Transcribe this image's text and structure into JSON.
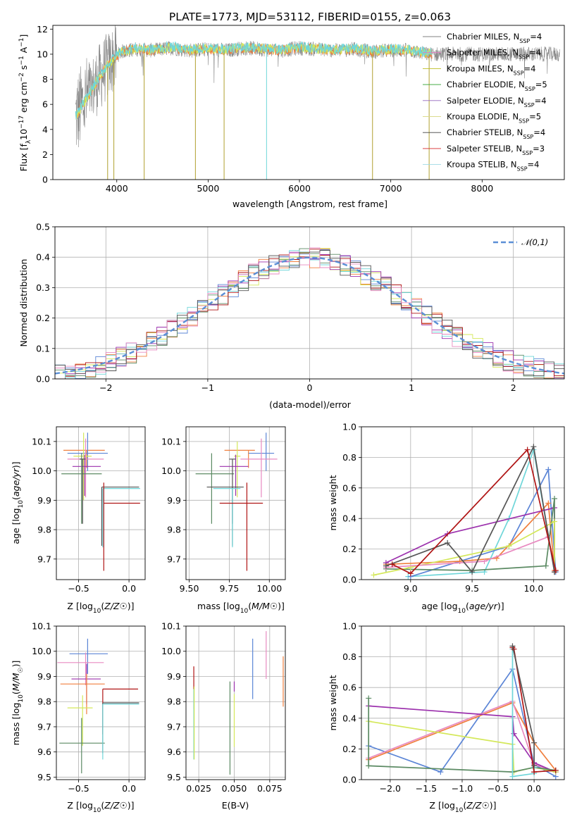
{
  "colors": {
    "Chabrier MILES": "#808080",
    "Salpeter MILES": "#e377c2",
    "Kroupa MILES": "#bcbd22",
    "Chabrier ELODIE": "#2ca02c",
    "Salpeter ELODIE": "#9467bd",
    "Kroupa ELODIE": "#dbdb8d",
    "Chabrier STELIB": "#404040",
    "Salpeter STELIB": "#d62728",
    "Kroupa STELIB": "#9edae5",
    "teal": "#6fd6d9",
    "blue": "#5b85d6",
    "orange": "#f07f3e",
    "purple": "#9c31ad",
    "green": "#5b8a63",
    "yellow": "#d4e85a",
    "pink": "#e88ac0",
    "red": "#b01515",
    "dark": "#555555"
  },
  "chart_data": [
    {
      "id": "spectrum",
      "type": "line",
      "title": "PLATE=1773, MJD=53112, FIBERID=0155, z=0.063",
      "xlabel": "wavelength [Angstrom, rest frame]",
      "ylabel": "Flux [f_λ10^-17 erg cm^-2 s^-1 A^-1]",
      "xlim": [
        3300,
        8900
      ],
      "ylim": [
        0,
        12.3
      ],
      "xticks": [
        4000,
        5000,
        6000,
        7000,
        8000
      ],
      "yticks": [
        0,
        2,
        4,
        6,
        8,
        10,
        12
      ],
      "legend_position": "right",
      "legend": [
        {
          "label": "Chabrier MILES",
          "nssp": "4"
        },
        {
          "label": "Salpeter MILES",
          "nssp": "4"
        },
        {
          "label": "Kroupa MILES",
          "nssp": "4"
        },
        {
          "label": "Chabrier ELODIE",
          "nssp": "5"
        },
        {
          "label": "Salpeter ELODIE",
          "nssp": "4"
        },
        {
          "label": "Kroupa ELODIE",
          "nssp": "5"
        },
        {
          "label": "Chabrier STELIB",
          "nssp": "4"
        },
        {
          "label": "Salpeter STELIB",
          "nssp": "3"
        },
        {
          "label": "Kroupa STELIB",
          "nssp": "4"
        }
      ],
      "model_continuum": [
        [
          3550,
          5.0
        ],
        [
          3650,
          6.2
        ],
        [
          3750,
          7.4
        ],
        [
          3850,
          8.6
        ],
        [
          3950,
          9.5
        ],
        [
          4050,
          10.2
        ],
        [
          4200,
          10.4
        ],
        [
          4400,
          10.3
        ],
        [
          4600,
          10.5
        ],
        [
          4800,
          10.3
        ],
        [
          5000,
          10.4
        ],
        [
          5200,
          10.3
        ],
        [
          5400,
          10.5
        ],
        [
          5600,
          10.4
        ],
        [
          5800,
          10.3
        ],
        [
          6000,
          10.5
        ],
        [
          6200,
          10.4
        ],
        [
          6400,
          10.3
        ],
        [
          6600,
          10.4
        ],
        [
          6800,
          10.2
        ],
        [
          7000,
          10.3
        ],
        [
          7200,
          10.3
        ],
        [
          7400,
          10.0
        ]
      ],
      "absorption_lines": [
        3900,
        3968,
        4300,
        4861,
        5175,
        5640,
        6800,
        7420
      ],
      "data_range": [
        3550,
        8850
      ]
    },
    {
      "id": "residuals",
      "type": "step",
      "xlabel": "(data-model)/error",
      "ylabel": "Normed distribution",
      "xlim": [
        -2.5,
        2.5
      ],
      "ylim": [
        0,
        0.5
      ],
      "xticks": [
        -2,
        -1,
        0,
        1,
        2
      ],
      "yticks": [
        0.0,
        0.1,
        0.2,
        0.3,
        0.4,
        0.5
      ],
      "legend_position": "top-right",
      "reference_label": "N(0,1)",
      "bin_width": 0.1
    },
    {
      "id": "age-vs-Z",
      "type": "errorbar",
      "xlabel": "Z [log10(Z/Z☉)]",
      "ylabel": "age [log10(age/yr)]",
      "xlim": [
        -0.72,
        0.16
      ],
      "ylim": [
        9.63,
        10.15
      ],
      "xticks": [
        -0.5,
        0.0
      ],
      "yticks": [
        9.7,
        9.8,
        9.9,
        10.0,
        10.1
      ],
      "points": [
        {
          "x": -0.42,
          "xerr": [
            0.23,
            0.18
          ],
          "y": 10.07,
          "yerr": [
            0.06,
            0.0
          ],
          "color": "orange"
        },
        {
          "x": -0.41,
          "xerr": [
            0.2,
            0.2
          ],
          "y": 10.06,
          "yerr": [
            0.06,
            0.07
          ],
          "color": "blue"
        },
        {
          "x": -0.43,
          "xerr": [
            0.18,
            0.18
          ],
          "y": 10.04,
          "yerr": [
            0.13,
            0.07
          ],
          "color": "pink"
        },
        {
          "x": -0.45,
          "xerr": [
            0.1,
            0.08
          ],
          "y": 10.05,
          "yerr": [
            0.15,
            0.08
          ],
          "color": "yellow"
        },
        {
          "x": -0.44,
          "xerr": [
            0.12,
            0.16
          ],
          "y": 10.015,
          "yerr": [
            0.1,
            0.04
          ],
          "color": "purple"
        },
        {
          "x": -0.47,
          "xerr": [
            0.2,
            0.2
          ],
          "y": 9.99,
          "yerr": [
            0.17,
            0.07
          ],
          "color": "green"
        },
        {
          "x": -0.46,
          "xerr": [
            0.03,
            0.03
          ],
          "y": 10.04,
          "yerr": [
            0.22,
            0.0
          ],
          "color": "dark"
        },
        {
          "x": -0.27,
          "xerr": [
            0.0,
            0.37
          ],
          "y": 9.945,
          "yerr": [
            0.2,
            0.0
          ],
          "color": "dark"
        },
        {
          "x": -0.26,
          "xerr": [
            0.0,
            0.37
          ],
          "y": 9.94,
          "yerr": [
            0.2,
            0.0
          ],
          "color": "teal"
        },
        {
          "x": -0.25,
          "xerr": [
            0.0,
            0.36
          ],
          "y": 9.89,
          "yerr": [
            0.23,
            0.07
          ],
          "color": "red"
        }
      ]
    },
    {
      "id": "age-vs-mass",
      "type": "errorbar",
      "xlabel": "mass [log10(M/M☉)]",
      "ylabel": "",
      "xlim": [
        9.48,
        10.1
      ],
      "ylim": [
        9.63,
        10.15
      ],
      "xticks": [
        9.5,
        9.75,
        10.0
      ],
      "yticks": [
        9.7,
        9.8,
        9.9,
        10.0,
        10.1
      ],
      "points": [
        {
          "x": 9.87,
          "xerr": [
            0.15,
            0.04
          ],
          "y": 10.07,
          "yerr": [
            0.06,
            0.0
          ],
          "color": "orange"
        },
        {
          "x": 9.98,
          "xerr": [
            0.11,
            0.05
          ],
          "y": 10.06,
          "yerr": [
            0.06,
            0.07
          ],
          "color": "blue"
        },
        {
          "x": 9.95,
          "xerr": [
            0.13,
            0.1
          ],
          "y": 10.04,
          "yerr": [
            0.13,
            0.07
          ],
          "color": "pink"
        },
        {
          "x": 9.8,
          "xerr": [
            0.02,
            0.02
          ],
          "y": 10.05,
          "yerr": [
            0.14,
            0.05
          ],
          "color": "yellow"
        },
        {
          "x": 9.79,
          "xerr": [
            0.1,
            0.08
          ],
          "y": 10.015,
          "yerr": [
            0.1,
            0.04
          ],
          "color": "purple"
        },
        {
          "x": 9.64,
          "xerr": [
            0.1,
            0.14
          ],
          "y": 9.99,
          "yerr": [
            0.17,
            0.07
          ],
          "color": "green"
        },
        {
          "x": 9.77,
          "xerr": [
            0.02,
            0.02
          ],
          "y": 10.04,
          "yerr": [
            0.22,
            0.0
          ],
          "color": "dark"
        },
        {
          "x": 9.77,
          "xerr": [
            0.16,
            0.07
          ],
          "y": 9.945,
          "yerr": [
            0.2,
            0.0
          ],
          "color": "dark"
        },
        {
          "x": 9.77,
          "xerr": [
            0.12,
            0.05
          ],
          "y": 9.94,
          "yerr": [
            0.2,
            0.0
          ],
          "color": "teal"
        },
        {
          "x": 9.86,
          "xerr": [
            0.17,
            0.1
          ],
          "y": 9.89,
          "yerr": [
            0.23,
            0.07
          ],
          "color": "red"
        }
      ]
    },
    {
      "id": "weight-vs-age",
      "type": "line",
      "xlabel": "age [log10(age/yr)]",
      "ylabel": "mass weight",
      "xlim": [
        8.6,
        10.25
      ],
      "ylim": [
        0,
        1.0
      ],
      "xticks": [
        9.0,
        9.5,
        10.0
      ],
      "yticks": [
        0.0,
        0.2,
        0.4,
        0.6,
        0.8,
        1.0
      ],
      "series": [
        {
          "color": "teal",
          "x": [
            8.98,
            9.6,
            9.8,
            10.0,
            10.17
          ],
          "y": [
            0.02,
            0.05,
            0.4,
            0.85,
            0.05
          ]
        },
        {
          "color": "blue",
          "x": [
            9.0,
            9.8,
            10.12,
            10.18
          ],
          "y": [
            0.02,
            0.22,
            0.72,
            0.05
          ]
        },
        {
          "color": "orange",
          "x": [
            8.8,
            9.4,
            9.7,
            10.12,
            10.17
          ],
          "y": [
            0.1,
            0.12,
            0.14,
            0.5,
            0.06
          ]
        },
        {
          "color": "purple",
          "x": [
            8.8,
            9.3,
            10.17,
            10.17
          ],
          "y": [
            0.11,
            0.3,
            0.47,
            0.05
          ]
        },
        {
          "color": "green",
          "x": [
            8.8,
            9.5,
            10.1,
            10.17,
            10.17
          ],
          "y": [
            0.07,
            0.06,
            0.09,
            0.53,
            0.05
          ]
        },
        {
          "color": "yellow",
          "x": [
            8.7,
            9.0,
            9.8,
            10.17,
            10.17
          ],
          "y": [
            0.03,
            0.08,
            0.22,
            0.38,
            0.05
          ]
        },
        {
          "color": "pink",
          "x": [
            8.8,
            9.6,
            10.12,
            10.17
          ],
          "y": [
            0.08,
            0.12,
            0.28,
            0.05
          ]
        },
        {
          "color": "dark",
          "x": [
            8.8,
            9.3,
            9.5,
            10.0,
            10.17
          ],
          "y": [
            0.09,
            0.24,
            0.05,
            0.87,
            0.05
          ]
        },
        {
          "color": "red",
          "x": [
            8.85,
            9.0,
            9.95,
            10.18
          ],
          "y": [
            0.1,
            0.04,
            0.85,
            0.06
          ]
        }
      ]
    },
    {
      "id": "mass-vs-Z",
      "type": "errorbar",
      "xlabel": "Z [log10(Z/Z☉)]",
      "ylabel": "mass [log10(M/M☉)]",
      "xlim": [
        -0.72,
        0.16
      ],
      "ylim": [
        9.49,
        10.1
      ],
      "xticks": [
        -0.5,
        0.0
      ],
      "yticks": [
        9.5,
        9.6,
        9.7,
        9.8,
        9.9,
        10.0,
        10.1
      ],
      "points": [
        {
          "x": -0.41,
          "xerr": [
            0.18,
            0.2
          ],
          "y": 9.99,
          "yerr": [
            0.08,
            0.06
          ],
          "color": "blue"
        },
        {
          "x": -0.43,
          "xerr": [
            0.28,
            0.18
          ],
          "y": 9.955,
          "yerr": [
            0.09,
            0.04
          ],
          "color": "pink"
        },
        {
          "x": -0.42,
          "xerr": [
            0.15,
            0.14
          ],
          "y": 9.89,
          "yerr": [
            0.1,
            0.06
          ],
          "color": "purple"
        },
        {
          "x": -0.42,
          "xerr": [
            0.26,
            0.18
          ],
          "y": 9.87,
          "yerr": [
            0.12,
            0.04
          ],
          "color": "orange"
        },
        {
          "x": -0.46,
          "xerr": [
            0.15,
            0.1
          ],
          "y": 9.775,
          "yerr": [
            0.15,
            0.05
          ],
          "color": "yellow"
        },
        {
          "x": -0.47,
          "xerr": [
            0.22,
            0.23
          ],
          "y": 9.635,
          "yerr": [
            0.12,
            0.1
          ],
          "color": "green"
        },
        {
          "x": -0.26,
          "xerr": [
            0.0,
            0.35
          ],
          "y": 9.85,
          "yerr": [
            0.18,
            0.0
          ],
          "color": "red"
        },
        {
          "x": -0.26,
          "xerr": [
            0.0,
            0.36
          ],
          "y": 9.795,
          "yerr": [
            0.2,
            0.0
          ],
          "color": "dark"
        },
        {
          "x": -0.26,
          "xerr": [
            0.0,
            0.36
          ],
          "y": 9.79,
          "yerr": [
            0.22,
            0.0
          ],
          "color": "teal"
        }
      ]
    },
    {
      "id": "mass-vs-EBV",
      "type": "errorbar",
      "xlabel": "E(B-V)",
      "ylabel": "",
      "xlim": [
        0.016,
        0.086
      ],
      "ylim": [
        9.49,
        10.1
      ],
      "xticks": [
        0.025,
        0.05,
        0.075
      ],
      "yticks": [
        9.5,
        9.6,
        9.7,
        9.8,
        9.9,
        10.0,
        10.1
      ],
      "points": [
        {
          "x": 0.0215,
          "y": 9.86,
          "yerr": [
            0.09,
            0.08
          ],
          "color": "red"
        },
        {
          "x": 0.0215,
          "y": 9.76,
          "yerr": [
            0.19,
            0.09
          ],
          "color": "teal"
        },
        {
          "x": 0.0218,
          "y": 9.72,
          "yerr": [
            0.15,
            0.14
          ],
          "color": "yellow"
        },
        {
          "x": 0.047,
          "y": 9.69,
          "yerr": [
            0.18,
            0.19
          ],
          "color": "green"
        },
        {
          "x": 0.05,
          "y": 9.86,
          "yerr": [
            0.02,
            0.02
          ],
          "color": "purple"
        },
        {
          "x": 0.05,
          "y": 9.72,
          "yerr": [
            0.1,
            0.11
          ],
          "color": "yellow"
        },
        {
          "x": 0.063,
          "y": 9.93,
          "yerr": [
            0.12,
            0.12
          ],
          "color": "blue"
        },
        {
          "x": 0.0725,
          "y": 9.98,
          "yerr": [
            0.09,
            0.1
          ],
          "color": "pink"
        },
        {
          "x": 0.0845,
          "y": 9.88,
          "yerr": [
            0.1,
            0.1
          ],
          "color": "orange"
        }
      ]
    },
    {
      "id": "weight-vs-Z",
      "type": "line",
      "xlabel": "Z [log10(Z/Z☉)]",
      "ylabel": "mass weight",
      "xlim": [
        -2.4,
        0.42
      ],
      "ylim": [
        0,
        1.0
      ],
      "xticks": [
        -2.0,
        -1.5,
        -1.0,
        -0.5,
        0.0
      ],
      "yticks": [
        0.0,
        0.2,
        0.4,
        0.6,
        0.8,
        1.0
      ],
      "series": [
        {
          "color": "blue",
          "x": [
            -2.3,
            -1.3,
            -0.3,
            0.0,
            0.3
          ],
          "y": [
            0.22,
            0.05,
            0.72,
            0.1,
            0.02
          ]
        },
        {
          "color": "orange",
          "x": [
            -2.3,
            -0.3,
            0.0,
            0.3
          ],
          "y": [
            0.13,
            0.5,
            0.24,
            0.06
          ]
        },
        {
          "color": "pink",
          "x": [
            -2.3,
            -0.3,
            0.0,
            0.3
          ],
          "y": [
            0.14,
            0.51,
            0.1,
            0.05
          ]
        },
        {
          "color": "purple",
          "x": [
            -2.3,
            -0.3,
            -0.28,
            0.0,
            0.3
          ],
          "y": [
            0.48,
            0.41,
            0.3,
            0.11,
            0.05
          ]
        },
        {
          "color": "yellow",
          "x": [
            -2.3,
            -0.3,
            -0.28,
            0.0,
            0.3
          ],
          "y": [
            0.38,
            0.23,
            0.05,
            0.08,
            0.05
          ]
        },
        {
          "color": "green",
          "x": [
            -2.3,
            -2.3,
            -0.3,
            0.0,
            0.3
          ],
          "y": [
            0.53,
            0.09,
            0.05,
            0.08,
            0.06
          ]
        },
        {
          "color": "teal",
          "x": [
            -0.3,
            -0.3,
            0.0,
            0.0
          ],
          "y": [
            0.85,
            0.02,
            0.04,
            0.08
          ]
        },
        {
          "color": "red",
          "x": [
            -0.3,
            -0.28,
            0.0,
            0.3
          ],
          "y": [
            0.86,
            0.85,
            0.05,
            0.06
          ]
        },
        {
          "color": "dark",
          "x": [
            -0.3,
            0.0,
            0.0
          ],
          "y": [
            0.87,
            0.24,
            0.09
          ]
        }
      ]
    }
  ]
}
